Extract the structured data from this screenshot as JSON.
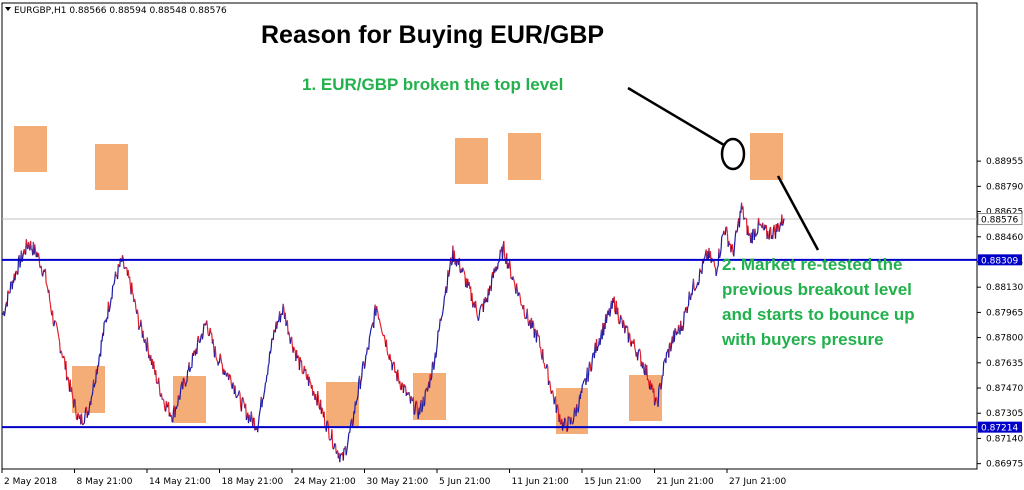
{
  "chart_data": {
    "type": "line",
    "title": "Reason for Buying EUR/GBP",
    "symbol_info": "EURGBP,H1  0.88566 0.88594 0.88548 0.88576",
    "ylim": [
      0.8694,
      0.8999
    ],
    "grid": false,
    "y_ticks": [
      "0.88955",
      "0.88790",
      "0.88625",
      "0.88460",
      "0.88295",
      "0.88130",
      "0.87965",
      "0.87800",
      "0.87635",
      "0.87470",
      "0.87305",
      "0.87140",
      "0.86975"
    ],
    "x_ticks": [
      "2 May 2018",
      "8 May 21:00",
      "14 May 21:00",
      "18 May 21:00",
      "24 May 21:00",
      "30 May 21:00",
      "5 Jun 21:00",
      "11 Jun 21:00",
      "15 Jun 21:00",
      "21 Jun 21:00",
      "27 Jun 21:00"
    ],
    "levels": [
      {
        "value": 0.88309,
        "label": "0.88309"
      },
      {
        "value": 0.87214,
        "label": "0.87214"
      }
    ],
    "current_price": {
      "value": 0.88576,
      "label": "0.88576"
    },
    "series": [
      {
        "values": [
          0.8795,
          0.8815,
          0.883,
          0.8842,
          0.8835,
          0.882,
          0.879,
          0.877,
          0.8745,
          0.8725,
          0.8732,
          0.8758,
          0.8788,
          0.8815,
          0.883,
          0.8815,
          0.879,
          0.8775,
          0.8755,
          0.8738,
          0.8729,
          0.8745,
          0.876,
          0.8776,
          0.879,
          0.877,
          0.876,
          0.8752,
          0.8738,
          0.8728,
          0.8723,
          0.8755,
          0.8785,
          0.8799,
          0.8778,
          0.8762,
          0.8752,
          0.8741,
          0.8725,
          0.8711,
          0.87,
          0.872,
          0.875,
          0.8772,
          0.8801,
          0.878,
          0.876,
          0.8749,
          0.8738,
          0.8731,
          0.8745,
          0.8771,
          0.8808,
          0.8835,
          0.8825,
          0.881,
          0.8795,
          0.8805,
          0.8825,
          0.8838,
          0.882,
          0.8805,
          0.879,
          0.878,
          0.876,
          0.8738,
          0.8722,
          0.8725,
          0.874,
          0.8758,
          0.8776,
          0.879,
          0.8803,
          0.8788,
          0.8778,
          0.8768,
          0.8755,
          0.8735,
          0.8765,
          0.878,
          0.8788,
          0.881,
          0.882,
          0.8835,
          0.8825,
          0.8852,
          0.8835,
          0.8865,
          0.8845,
          0.8853,
          0.8848,
          0.885,
          0.8858
        ]
      }
    ]
  },
  "annotations": {
    "note1": "1. EUR/GBP broken the top level",
    "note2_lines": [
      "2. Market re-tested the",
      "previous breakout level",
      "and starts to bounce up",
      "with buyers presure"
    ]
  },
  "colors": {
    "level_line": "#0000c8",
    "box_fill": "#f2a264",
    "up_color": "#1a1aa6",
    "down_color": "#e0202a",
    "annotation": "#22b14c"
  }
}
